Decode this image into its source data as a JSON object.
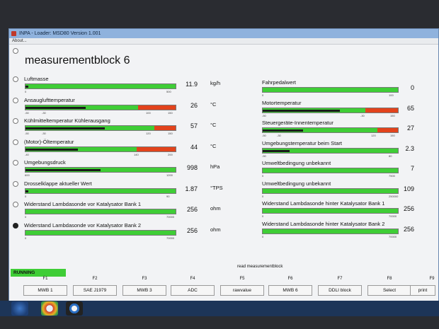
{
  "window": {
    "title": "INPA - Loader: MSD80 Version 1.001",
    "menu": "About..."
  },
  "page": {
    "heading": "measurementblock 6"
  },
  "left": [
    {
      "label": "Luftmasse",
      "value": "11.9",
      "unit": "kg/h",
      "ticks": [
        "0",
        "500"
      ],
      "fill": 0.02
    },
    {
      "label": "Ansauglufttemperatur",
      "value": "26",
      "unit": "°C",
      "ticks": [
        "-50",
        "-30",
        "100",
        "150"
      ],
      "fill": 0.4,
      "red_from": 0.75
    },
    {
      "label": "Kühlmitteltemperatur Kühlerausgang",
      "value": "57",
      "unit": "°C",
      "ticks": [
        "-50",
        "-30",
        "120",
        "150"
      ],
      "fill": 0.53,
      "red_from": 0.86
    },
    {
      "label": "(Motor)-Öltemperatur",
      "value": "44",
      "unit": "°C",
      "ticks": [
        "-40",
        "140",
        "200"
      ],
      "fill": 0.35,
      "red_from": 0.74
    },
    {
      "label": "Umgebungsdruck",
      "value": "998",
      "unit": "hPa",
      "ticks": [
        "600",
        "1200"
      ],
      "fill": 0.5
    },
    {
      "label": "Drosselklappe aktueller Wert",
      "value": "1.87",
      "unit": "°TPS",
      "ticks": [
        "0",
        "90"
      ],
      "fill": 0.02
    },
    {
      "label": "Widerstand Lambdasonde vor Katalysator Bank 1",
      "value": "256",
      "unit": "ohm",
      "ticks": [
        "0",
        "70000"
      ],
      "fill": 0
    },
    {
      "label": "Widerstand Lambdasonde vor Katalysator Bank 2",
      "value": "256",
      "unit": "ohm",
      "ticks": [
        "0",
        "70000"
      ],
      "fill": 0
    }
  ],
  "right": [
    {
      "label": "Fahrpedalwert",
      "value": "0",
      "ticks": [
        "0",
        "100"
      ],
      "fill": 0
    },
    {
      "label": "Motortemperatur",
      "value": "65",
      "ticks": [
        "-50",
        "-30",
        "150"
      ],
      "fill": 0.57,
      "red_from": 0.76
    },
    {
      "label": "Steuergeräte-Innentemperatur",
      "value": "27",
      "ticks": [
        "-50",
        "-30",
        "120",
        "150"
      ],
      "fill": 0.3,
      "red_from": 0.85
    },
    {
      "label": "Umgebungstemperatur beim Start",
      "value": "2.3",
      "ticks": [
        "-50",
        "80"
      ],
      "fill": 0.2
    },
    {
      "label": "Umweltbedingung unbekannt",
      "value": "7",
      "ticks": [
        "0",
        "7500"
      ],
      "fill": 0
    },
    {
      "label": "Umweltbedingung unbekannt",
      "value": "109",
      "ticks": [
        "0",
        "250000"
      ],
      "fill": 0
    },
    {
      "label": "Widerstand Lambdasonde hinter Katalysator Bank 1",
      "value": "256",
      "ticks": [
        "0",
        "70000"
      ],
      "fill": 0
    },
    {
      "label": "Widerstand Lambdasonde hinter Katalysator Bank 2",
      "value": "256",
      "ticks": [
        "0",
        "70000"
      ],
      "fill": 0
    }
  ],
  "status": "RUNNING",
  "read_label": "read measurementblock",
  "fkeys": [
    {
      "key": "F1",
      "label": "MWB 1"
    },
    {
      "key": "F2",
      "label": "SAE J1979"
    },
    {
      "key": "F3",
      "label": "MWB 3"
    },
    {
      "key": "F4",
      "label": "ADC"
    },
    {
      "key": "F5",
      "label": "rawvalue"
    },
    {
      "key": "F6",
      "label": "MWB 6"
    },
    {
      "key": "F7",
      "label": "DDLI block"
    },
    {
      "key": "F8",
      "label": "Select"
    },
    {
      "key": "F9",
      "label": "print"
    }
  ],
  "colors": {
    "bar_green": "#3fcd36",
    "bar_red": "#e2431c",
    "bar_black": "#1a1a1a"
  }
}
